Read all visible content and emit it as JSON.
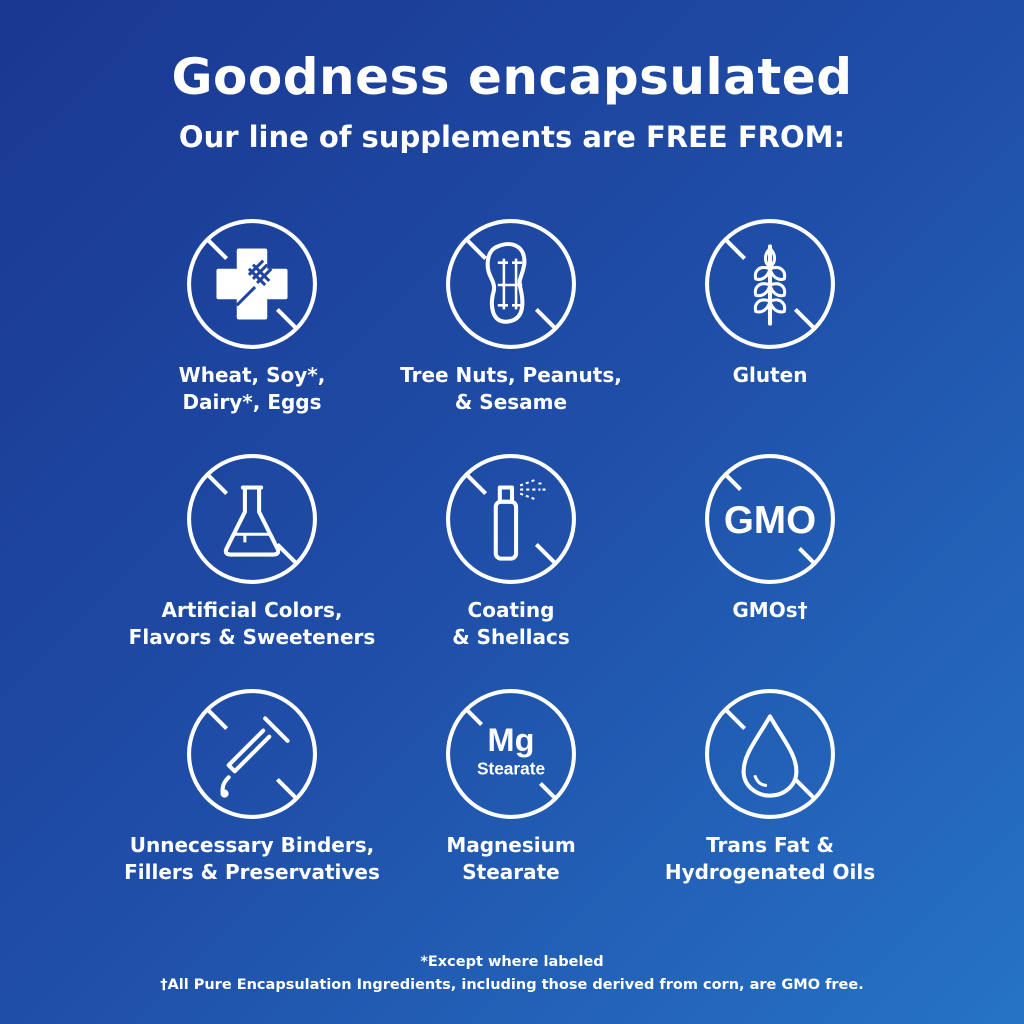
{
  "header": {
    "title": "Goodness encapsulated",
    "subtitle": "Our line of supplements are FREE FROM:"
  },
  "items": [
    {
      "icon": "no-allergen-icon",
      "label": "Wheat, Soy*,\nDairy*, Eggs"
    },
    {
      "icon": "no-peanut-icon",
      "label": "Tree Nuts, Peanuts,\n& Sesame"
    },
    {
      "icon": "no-gluten-wheat-icon",
      "label": "Gluten"
    },
    {
      "icon": "no-flask-icon",
      "label": "Artificial Colors,\nFlavors & Sweeteners"
    },
    {
      "icon": "no-spray-icon",
      "label": "Coating\n& Shellacs"
    },
    {
      "icon": "no-gmo-icon",
      "label": "GMOs†",
      "icon_text": "GMO"
    },
    {
      "icon": "no-dropper-icon",
      "label": "Unnecessary Binders,\nFillers & Preservatives"
    },
    {
      "icon": "no-mg-stearate-icon",
      "label": "Magnesium\nStearate",
      "icon_text": "Mg",
      "icon_subtext": "Stearate"
    },
    {
      "icon": "no-oil-drop-icon",
      "label": "Trans Fat &\nHydrogenated Oils"
    }
  ],
  "footnotes": [
    "*Except where labeled",
    "†All Pure Encapsulation Ingredients, including those derived from corn, are GMO free."
  ],
  "colors": {
    "background_start": "#1a3791",
    "background_end": "#2673c6",
    "foreground": "#ffffff"
  }
}
